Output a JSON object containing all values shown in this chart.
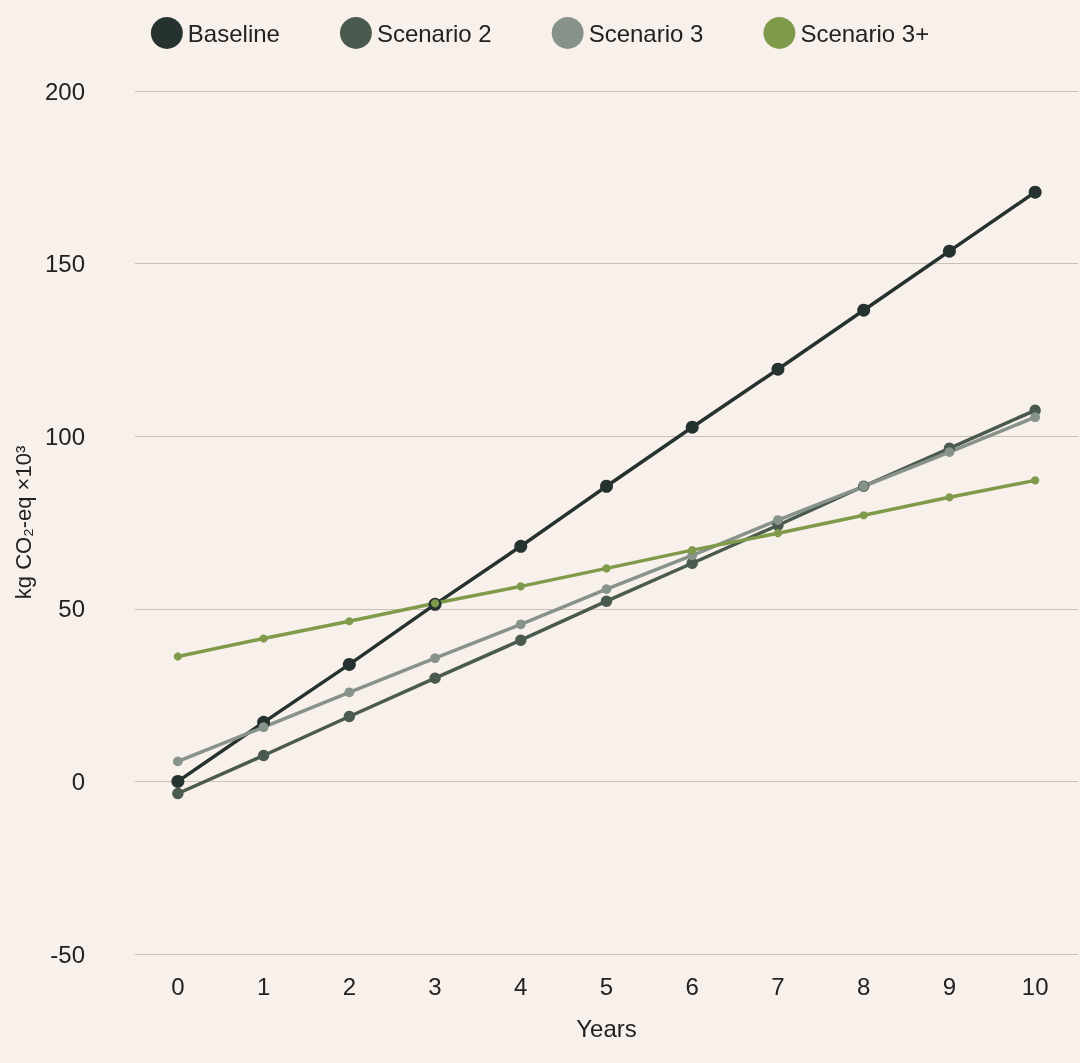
{
  "chart_data": {
    "type": "line",
    "xlabel": "Years",
    "ylabel": "kg CO₂-eq ×10³",
    "categories": [
      "0",
      "1",
      "2",
      "3",
      "4",
      "5",
      "6",
      "7",
      "8",
      "9",
      "10"
    ],
    "series": [
      {
        "name": "Baseline",
        "color": "#263230",
        "values": [
          0,
          17.1,
          33.9,
          51.3,
          68.1,
          85.5,
          102.6,
          119.4,
          136.5,
          153.6,
          170.7
        ]
      },
      {
        "name": "Scenario 2",
        "color": "#4a5a4e",
        "values": [
          -3.5,
          7.5,
          18.8,
          29.9,
          40.9,
          52.2,
          63.2,
          74.2,
          85.5,
          96.5,
          107.5
        ]
      },
      {
        "name": "Scenario 3",
        "color": "#87928a",
        "values": [
          5.8,
          15.7,
          25.8,
          35.7,
          45.5,
          55.7,
          65.5,
          75.7,
          85.5,
          95.4,
          105.5
        ]
      },
      {
        "name": "Scenario 3+",
        "color": "#7f9a4a",
        "values": [
          36.2,
          41.4,
          46.4,
          51.6,
          56.5,
          61.7,
          67,
          71.9,
          77.1,
          82.3,
          87.2
        ]
      }
    ],
    "ylim": [
      -50,
      200
    ],
    "yticks": [
      -50,
      0,
      50,
      100,
      150,
      200
    ],
    "grid": "y",
    "legend": "top",
    "marker": "circle",
    "line_style": "solid"
  }
}
